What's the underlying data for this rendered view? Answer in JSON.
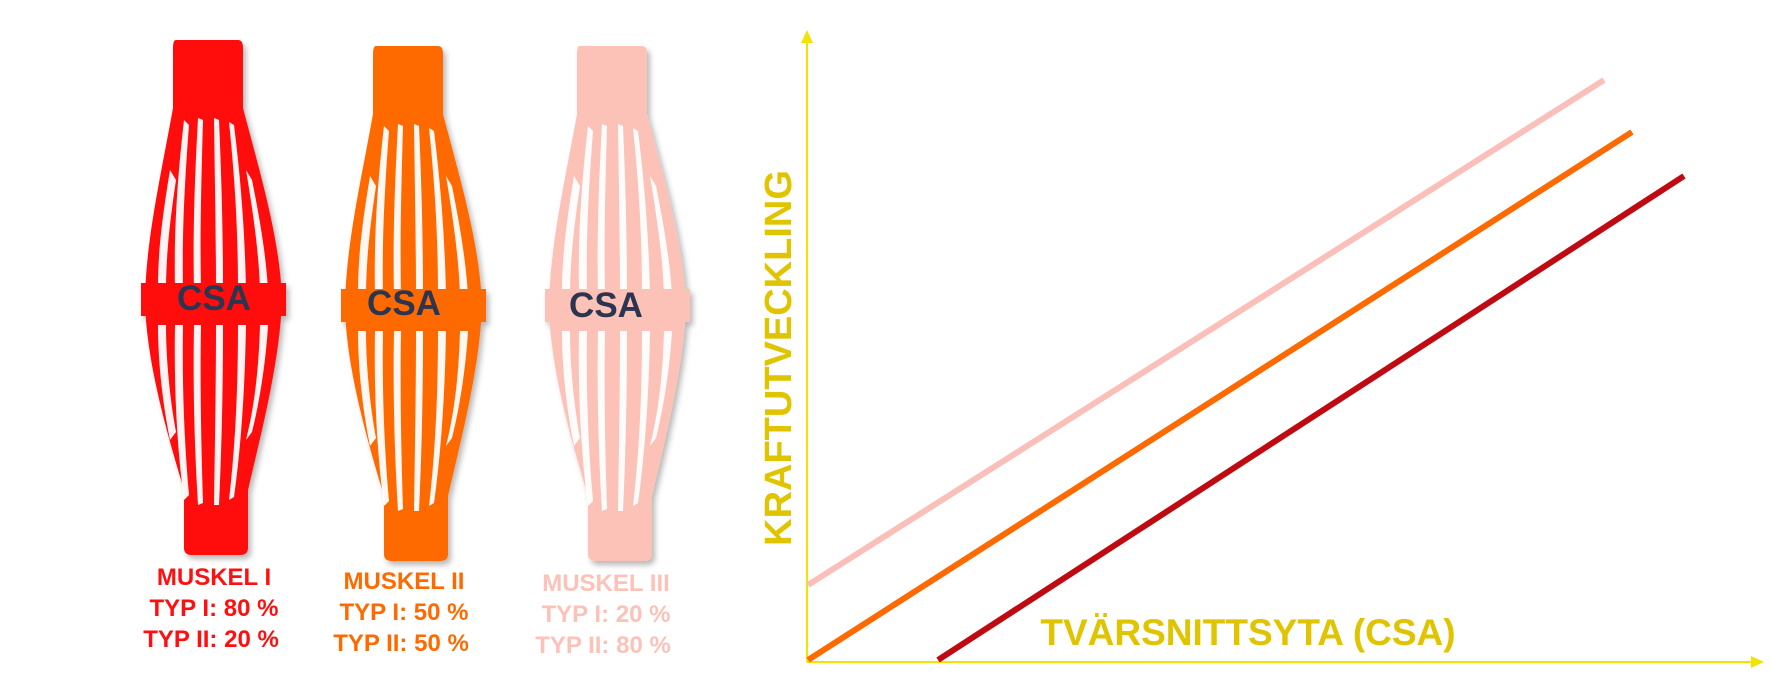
{
  "colors": {
    "muscle_1": "#ff0f0f",
    "muscle_2": "#ff6a00",
    "muscle_3": "#fcc2b8",
    "csa_text": "#2b3550",
    "axis": "#f2e400",
    "axis_label": "#e0c400",
    "line_1": "#c00a12",
    "line_2": "#ff6a00",
    "line_3": "#fbbfba"
  },
  "muscles": [
    {
      "csa_label": "CSA",
      "name": "MUSKEL I",
      "typ1": "TYP I: 80 %",
      "typ2": "TYP II: 20 %"
    },
    {
      "csa_label": "CSA",
      "name": "MUSKEL II",
      "typ1": "TYP I: 50 %",
      "typ2": "TYP II: 50 %"
    },
    {
      "csa_label": "CSA",
      "name": "MUSKEL III",
      "typ1": "TYP I: 20 %",
      "typ2": "TYP II: 80 %"
    }
  ],
  "chart": {
    "y_label": "KRAFTUTVECKLING",
    "x_label": "TVÄRSNITTSYTA (CSA)"
  }
}
